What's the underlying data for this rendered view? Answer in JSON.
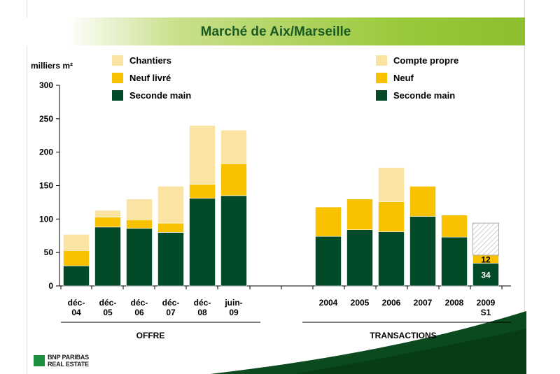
{
  "slide": {
    "title": "Marché de Aix/Marseille",
    "logo_line1": "BNP PARIBAS",
    "logo_line2": "REAL ESTATE"
  },
  "colors": {
    "chantiers": "#fbe3a3",
    "neuf": "#f8c200",
    "seconde_main": "#034a28",
    "hatch": "#cfcfcf",
    "title_text": "#1a5a24",
    "band": "#9ac83c"
  },
  "chart_data": {
    "type": "bar",
    "stacked": true,
    "ylabel": "milliers m²",
    "ylim": [
      0,
      300
    ],
    "yticks": [
      0,
      50,
      100,
      150,
      200,
      250,
      300
    ],
    "offre": {
      "group_label": "OFFRE",
      "categories": [
        [
          "déc-",
          "04"
        ],
        [
          "déc-",
          "05"
        ],
        [
          "déc-",
          "06"
        ],
        [
          "déc-",
          "07"
        ],
        [
          "déc-",
          "08"
        ],
        [
          "juin-",
          "09"
        ]
      ],
      "series": [
        {
          "name": "Seconde main",
          "color": "#034a28",
          "values": [
            30,
            88,
            86,
            80,
            131,
            135
          ]
        },
        {
          "name": "Neuf livré",
          "color": "#f8c200",
          "values": [
            23,
            15,
            13,
            14,
            21,
            48
          ]
        },
        {
          "name": "Chantiers",
          "color": "#fbe3a3",
          "values": [
            24,
            10,
            31,
            55,
            88,
            50
          ]
        }
      ],
      "legend": [
        "Chantiers",
        "Neuf livré",
        "Seconde main"
      ]
    },
    "transactions": {
      "group_label": "TRANSACTIONS",
      "categories": [
        [
          "2004"
        ],
        [
          "2005"
        ],
        [
          "2006"
        ],
        [
          "2007"
        ],
        [
          "2008"
        ],
        [
          "2009",
          "S1"
        ]
      ],
      "series": [
        {
          "name": "Seconde main",
          "color": "#034a28",
          "values": [
            74,
            84,
            81,
            104,
            73,
            34
          ]
        },
        {
          "name": "Neuf",
          "color": "#f8c200",
          "values": [
            44,
            46,
            45,
            45,
            33,
            12
          ]
        },
        {
          "name": "Compte propre",
          "color": "#fbe3a3",
          "values": [
            0,
            0,
            51,
            0,
            0,
            0
          ]
        }
      ],
      "hatched_forecast": {
        "index": 5,
        "value": 48
      },
      "data_labels": [
        {
          "index": 5,
          "series": "Seconde main",
          "text": "34"
        },
        {
          "index": 5,
          "series": "Neuf",
          "text": "12"
        }
      ],
      "legend": [
        "Compte propre",
        "Neuf",
        "Seconde main"
      ]
    }
  }
}
